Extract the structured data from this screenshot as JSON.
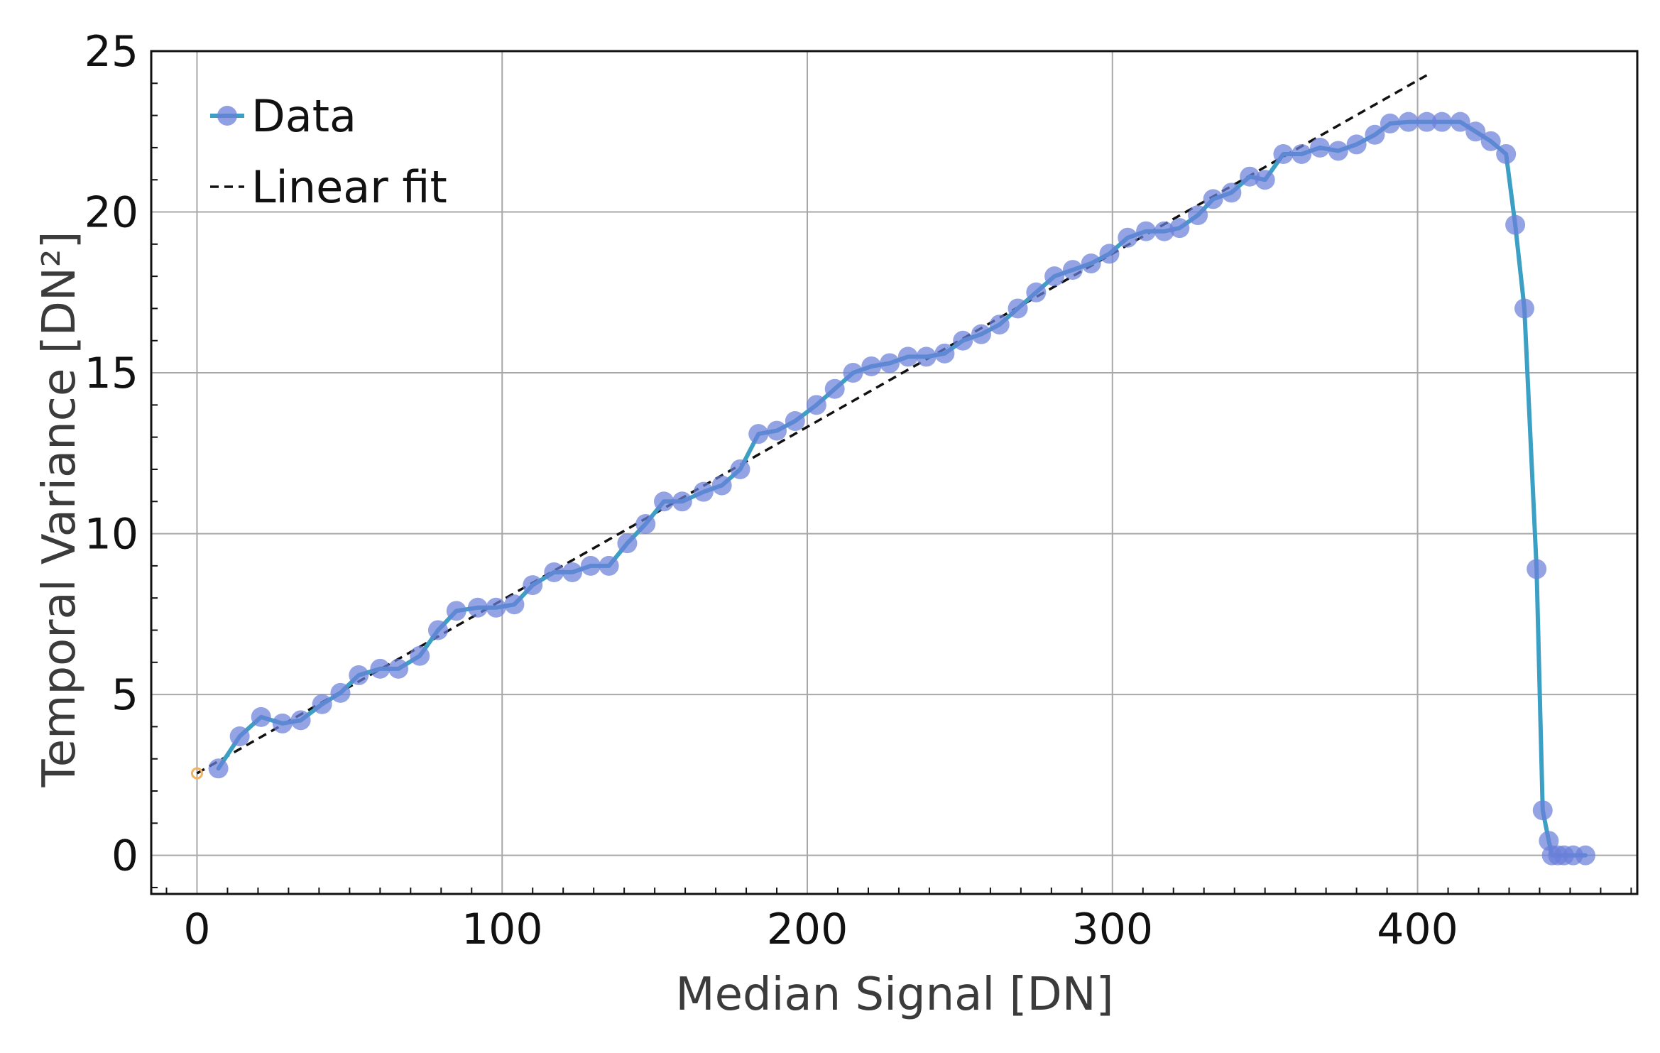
{
  "chart_data": {
    "type": "line",
    "xlabel": "Median Signal [DN]",
    "ylabel": "Temporal Variance [DN²]",
    "xlim": [
      -15,
      472
    ],
    "ylim": [
      -1.2,
      25
    ],
    "x_ticks": [
      0,
      100,
      200,
      300,
      400
    ],
    "y_ticks": [
      0,
      5,
      10,
      15,
      20,
      25
    ],
    "x_tick_labels": [
      "0",
      "100",
      "200",
      "300",
      "400"
    ],
    "y_tick_labels": [
      "0",
      "5",
      "10",
      "15",
      "20",
      "25"
    ],
    "grid": true,
    "legend_position": "top-left",
    "colors": {
      "data_line": "#3c9fc4",
      "data_marker": "#6b7fd9",
      "fit_line": "#111111",
      "origin_marker": "#f2b35e",
      "grid": "#a8a8a8",
      "axis": "#111111"
    },
    "series": [
      {
        "name": "Data",
        "style": "line-with-markers",
        "x": [
          7,
          14,
          21,
          28,
          34,
          41,
          47,
          53,
          60,
          66,
          73,
          79,
          85,
          92,
          98,
          104,
          110,
          117,
          123,
          129,
          135,
          141,
          147,
          153,
          159,
          166,
          172,
          178,
          184,
          190,
          196,
          203,
          209,
          215,
          221,
          227,
          233,
          239,
          245,
          251,
          257,
          263,
          269,
          275,
          281,
          287,
          293,
          299,
          305,
          311,
          317,
          322,
          328,
          333,
          339,
          345,
          350,
          356,
          362,
          368,
          374,
          380,
          386,
          391,
          397,
          403,
          408,
          414,
          419,
          424,
          429,
          432,
          435,
          439,
          441,
          443,
          444,
          446,
          448,
          451,
          455
        ],
        "y": [
          2.7,
          3.7,
          4.3,
          4.1,
          4.2,
          4.7,
          5.05,
          5.6,
          5.8,
          5.8,
          6.2,
          7.0,
          7.6,
          7.7,
          7.7,
          7.8,
          8.4,
          8.8,
          8.8,
          9.0,
          9.0,
          9.7,
          10.3,
          11.0,
          11.0,
          11.3,
          11.5,
          12.0,
          13.1,
          13.2,
          13.5,
          14.0,
          14.5,
          15.0,
          15.2,
          15.3,
          15.5,
          15.5,
          15.6,
          16.0,
          16.2,
          16.5,
          17.0,
          17.5,
          18.0,
          18.2,
          18.4,
          18.7,
          19.2,
          19.4,
          19.4,
          19.5,
          19.9,
          20.4,
          20.6,
          21.1,
          21.0,
          21.8,
          21.8,
          22.0,
          21.9,
          22.1,
          22.4,
          22.75,
          22.8,
          22.8,
          22.8,
          22.8,
          22.5,
          22.2,
          21.8,
          19.6,
          17.0,
          8.9,
          1.4,
          0.45,
          0.0,
          0.0,
          0.0,
          0.0,
          0.0
        ]
      },
      {
        "name": "Linear fit",
        "style": "dashed",
        "x": [
          0,
          403
        ],
        "y": [
          2.55,
          24.25
        ]
      }
    ],
    "origin_point": {
      "x": 0,
      "y": 2.55
    }
  }
}
